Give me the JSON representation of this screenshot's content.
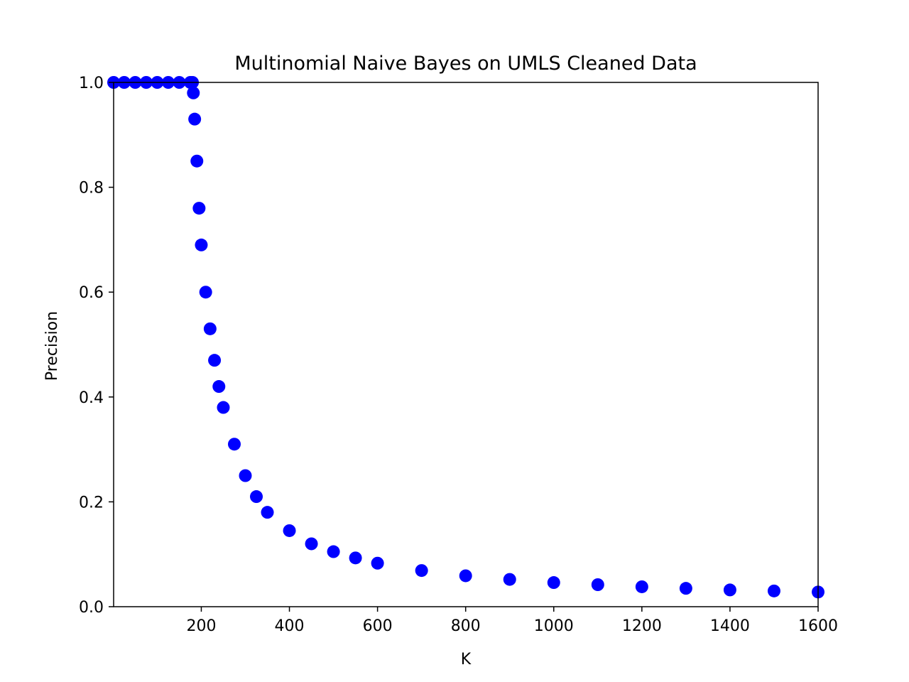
{
  "chart_data": {
    "type": "scatter",
    "title": "Multinomial Naive Bayes on UMLS Cleaned Data",
    "xlabel": "K",
    "ylabel": "Precision",
    "xlim": [
      1,
      1600
    ],
    "ylim": [
      0.0,
      1.0
    ],
    "grid": false,
    "legend": "none",
    "marker_color": "#0000ff",
    "x_ticks": [
      200,
      400,
      600,
      800,
      1000,
      1200,
      1400,
      1600
    ],
    "x_tick_labels": [
      "200",
      "400",
      "600",
      "800",
      "1000",
      "1200",
      "1400",
      "1600"
    ],
    "y_ticks": [
      0.0,
      0.2,
      0.4,
      0.6,
      0.8,
      1.0
    ],
    "y_tick_labels": [
      "0.0",
      "0.2",
      "0.4",
      "0.6",
      "0.8",
      "1.0"
    ],
    "series": [
      {
        "x": [
          1,
          25,
          50,
          75,
          100,
          125,
          150,
          175,
          180,
          182,
          185,
          190,
          195,
          200,
          210,
          220,
          230,
          240,
          250,
          275,
          300,
          325,
          350,
          400,
          450,
          500,
          550,
          600,
          700,
          800,
          900,
          1000,
          1100,
          1200,
          1300,
          1400,
          1500,
          1600
        ],
        "y": [
          1.0,
          1.0,
          1.0,
          1.0,
          1.0,
          1.0,
          1.0,
          1.0,
          1.0,
          0.98,
          0.93,
          0.85,
          0.76,
          0.69,
          0.6,
          0.53,
          0.47,
          0.42,
          0.38,
          0.31,
          0.25,
          0.21,
          0.18,
          0.145,
          0.12,
          0.105,
          0.093,
          0.083,
          0.069,
          0.059,
          0.052,
          0.046,
          0.042,
          0.038,
          0.035,
          0.032,
          0.03,
          0.028
        ]
      }
    ]
  }
}
